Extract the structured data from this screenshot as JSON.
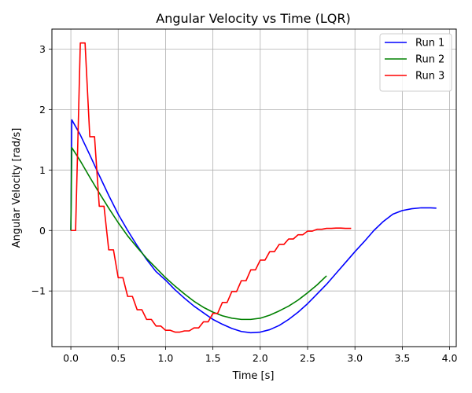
{
  "chart_data": {
    "type": "line",
    "title": "Angular Velocity vs Time (LQR)",
    "xlabel": "Time [s]",
    "ylabel": "Angular Velocity [rad/s]",
    "xlim": [
      -0.2,
      4.07
    ],
    "ylim": [
      -1.92,
      3.33
    ],
    "xticks": [
      0.0,
      0.5,
      1.0,
      1.5,
      2.0,
      2.5,
      3.0,
      3.5,
      4.0
    ],
    "xtick_labels": [
      "0.0",
      "0.5",
      "1.0",
      "1.5",
      "2.0",
      "2.5",
      "3.0",
      "3.5",
      "4.0"
    ],
    "yticks": [
      -1,
      0,
      1,
      2,
      3
    ],
    "ytick_labels": [
      "−1",
      "0",
      "1",
      "2",
      "3"
    ],
    "grid": true,
    "legend_position": "top-right",
    "series": [
      {
        "name": "Run 1",
        "color": "#0000ff",
        "points": [
          [
            0.0,
            0.0
          ],
          [
            0.01,
            1.83
          ],
          [
            0.1,
            1.58
          ],
          [
            0.2,
            1.25
          ],
          [
            0.3,
            0.91
          ],
          [
            0.4,
            0.58
          ],
          [
            0.5,
            0.27
          ],
          [
            0.6,
            0.0
          ],
          [
            0.7,
            -0.25
          ],
          [
            0.8,
            -0.48
          ],
          [
            0.9,
            -0.68
          ],
          [
            1.0,
            -0.82
          ],
          [
            1.1,
            -0.98
          ],
          [
            1.2,
            -1.12
          ],
          [
            1.3,
            -1.25
          ],
          [
            1.4,
            -1.36
          ],
          [
            1.5,
            -1.47
          ],
          [
            1.6,
            -1.55
          ],
          [
            1.7,
            -1.62
          ],
          [
            1.8,
            -1.67
          ],
          [
            1.9,
            -1.69
          ],
          [
            2.0,
            -1.68
          ],
          [
            2.1,
            -1.64
          ],
          [
            2.2,
            -1.57
          ],
          [
            2.3,
            -1.47
          ],
          [
            2.4,
            -1.35
          ],
          [
            2.5,
            -1.21
          ],
          [
            2.6,
            -1.05
          ],
          [
            2.7,
            -0.89
          ],
          [
            2.8,
            -0.71
          ],
          [
            2.9,
            -0.53
          ],
          [
            3.0,
            -0.35
          ],
          [
            3.1,
            -0.18
          ],
          [
            3.2,
            0.0
          ],
          [
            3.3,
            0.15
          ],
          [
            3.4,
            0.27
          ],
          [
            3.5,
            0.33
          ],
          [
            3.6,
            0.36
          ],
          [
            3.7,
            0.375
          ],
          [
            3.8,
            0.375
          ],
          [
            3.86,
            0.37
          ]
        ]
      },
      {
        "name": "Run 2",
        "color": "#008000",
        "points": [
          [
            0.0,
            0.0
          ],
          [
            0.01,
            1.37
          ],
          [
            0.1,
            1.15
          ],
          [
            0.2,
            0.88
          ],
          [
            0.3,
            0.62
          ],
          [
            0.4,
            0.37
          ],
          [
            0.5,
            0.13
          ],
          [
            0.6,
            -0.09
          ],
          [
            0.7,
            -0.28
          ],
          [
            0.8,
            -0.46
          ],
          [
            0.9,
            -0.62
          ],
          [
            1.0,
            -0.78
          ],
          [
            1.1,
            -0.92
          ],
          [
            1.2,
            -1.05
          ],
          [
            1.3,
            -1.17
          ],
          [
            1.4,
            -1.27
          ],
          [
            1.5,
            -1.35
          ],
          [
            1.6,
            -1.41
          ],
          [
            1.7,
            -1.45
          ],
          [
            1.8,
            -1.47
          ],
          [
            1.9,
            -1.47
          ],
          [
            2.0,
            -1.45
          ],
          [
            2.1,
            -1.4
          ],
          [
            2.2,
            -1.33
          ],
          [
            2.3,
            -1.25
          ],
          [
            2.4,
            -1.15
          ],
          [
            2.5,
            -1.03
          ],
          [
            2.6,
            -0.9
          ],
          [
            2.7,
            -0.75
          ]
        ]
      },
      {
        "name": "Run 3",
        "color": "#ff0000",
        "points": [
          [
            0.0,
            0.0
          ],
          [
            0.05,
            0.0
          ],
          [
            0.1,
            3.1
          ],
          [
            0.15,
            3.1
          ],
          [
            0.2,
            1.55
          ],
          [
            0.25,
            1.55
          ],
          [
            0.3,
            0.4
          ],
          [
            0.35,
            0.4
          ],
          [
            0.4,
            -0.32
          ],
          [
            0.45,
            -0.32
          ],
          [
            0.5,
            -0.78
          ],
          [
            0.55,
            -0.78
          ],
          [
            0.6,
            -1.09
          ],
          [
            0.65,
            -1.09
          ],
          [
            0.7,
            -1.31
          ],
          [
            0.75,
            -1.31
          ],
          [
            0.8,
            -1.47
          ],
          [
            0.85,
            -1.47
          ],
          [
            0.9,
            -1.58
          ],
          [
            0.95,
            -1.58
          ],
          [
            1.0,
            -1.65
          ],
          [
            1.05,
            -1.65
          ],
          [
            1.1,
            -1.68
          ],
          [
            1.15,
            -1.68
          ],
          [
            1.2,
            -1.66
          ],
          [
            1.25,
            -1.66
          ],
          [
            1.3,
            -1.61
          ],
          [
            1.35,
            -1.61
          ],
          [
            1.4,
            -1.51
          ],
          [
            1.45,
            -1.51
          ],
          [
            1.5,
            -1.37
          ],
          [
            1.55,
            -1.37
          ],
          [
            1.6,
            -1.19
          ],
          [
            1.65,
            -1.19
          ],
          [
            1.7,
            -1.01
          ],
          [
            1.75,
            -1.01
          ],
          [
            1.8,
            -0.83
          ],
          [
            1.85,
            -0.83
          ],
          [
            1.9,
            -0.65
          ],
          [
            1.95,
            -0.65
          ],
          [
            2.0,
            -0.49
          ],
          [
            2.05,
            -0.49
          ],
          [
            2.1,
            -0.35
          ],
          [
            2.15,
            -0.35
          ],
          [
            2.2,
            -0.23
          ],
          [
            2.25,
            -0.23
          ],
          [
            2.3,
            -0.14
          ],
          [
            2.35,
            -0.14
          ],
          [
            2.4,
            -0.07
          ],
          [
            2.45,
            -0.07
          ],
          [
            2.5,
            -0.01
          ],
          [
            2.55,
            -0.01
          ],
          [
            2.6,
            0.02
          ],
          [
            2.65,
            0.02
          ],
          [
            2.7,
            0.035
          ],
          [
            2.75,
            0.035
          ],
          [
            2.8,
            0.04
          ],
          [
            2.85,
            0.04
          ],
          [
            2.9,
            0.035
          ],
          [
            2.96,
            0.035
          ]
        ]
      }
    ]
  }
}
